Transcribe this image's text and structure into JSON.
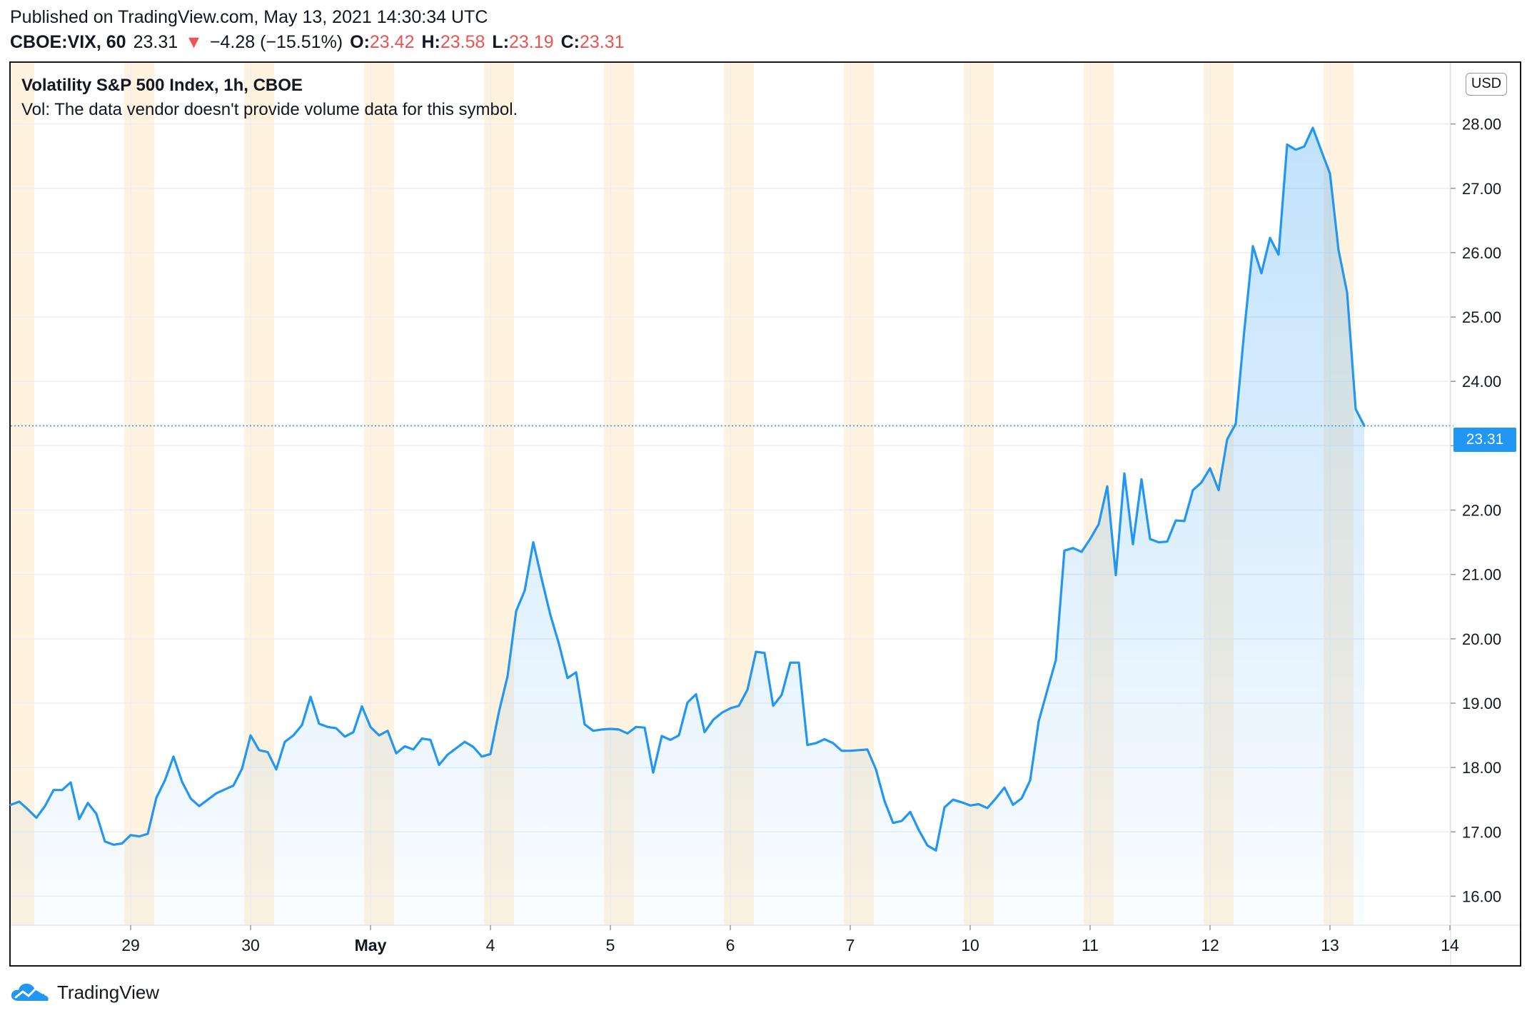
{
  "header": {
    "published": "Published on TradingView.com, May 13, 2021 14:30:34 UTC",
    "symbol": "CBOE:VIX, 60",
    "last": "23.31",
    "change_arrow": "▼",
    "change": "−4.28 (−15.51%)",
    "open_label": "O:",
    "open": "23.42",
    "high_label": "H:",
    "high": "23.58",
    "low_label": "L:",
    "low": "23.19",
    "close_label": "C:",
    "close": "23.31"
  },
  "legend": {
    "title": "Volatility S&P 500 Index, 1h, CBOE",
    "volume_note": "Vol: The data vendor doesn't provide volume data for this symbol."
  },
  "price_scale": {
    "currency": "USD",
    "last_price_label": "23.31"
  },
  "brand": {
    "name": "TradingView",
    "icon": "tradingview-cloud-icon"
  },
  "colors": {
    "line": "#2196f3",
    "session_band": "#fff3e0",
    "price_tag": "#2196f3",
    "change_down": "#ef5350"
  },
  "chart_data": {
    "type": "area",
    "series": [
      {
        "values": [
          17.42,
          17.47,
          17.35,
          17.22,
          17.4,
          17.65,
          17.65,
          17.77,
          17.2,
          17.45,
          17.28,
          16.85,
          16.8,
          16.82,
          16.95,
          16.93,
          16.97,
          17.53,
          17.8,
          18.17,
          17.78,
          17.52,
          17.4,
          17.5,
          17.6,
          17.66,
          17.72,
          17.98,
          18.5,
          18.27,
          18.24,
          17.97,
          18.4,
          18.5,
          18.66,
          19.1,
          18.68,
          18.63,
          18.61,
          18.48,
          18.55,
          18.95,
          18.63,
          18.5,
          18.57,
          18.22,
          18.33,
          18.28,
          18.45,
          18.43,
          18.04,
          18.2,
          18.3,
          18.4,
          18.32,
          18.17,
          18.21,
          18.87,
          19.42,
          20.43,
          20.75,
          21.5,
          20.92,
          20.37,
          19.92,
          19.39,
          19.48,
          18.67,
          18.57,
          18.59,
          18.6,
          18.59,
          18.53,
          18.63,
          18.62,
          17.92,
          18.49,
          18.43,
          18.5,
          19.01,
          19.14,
          18.55,
          18.74,
          18.85,
          18.92,
          18.96,
          19.21,
          19.8,
          19.78,
          18.96,
          19.13,
          19.63,
          19.63,
          18.35,
          18.38,
          18.44,
          18.38,
          18.26,
          18.26,
          18.27,
          18.28,
          17.97,
          17.48,
          17.14,
          17.17,
          17.31,
          17.03,
          16.79,
          16.71,
          17.38,
          17.5,
          17.46,
          17.41,
          17.43,
          17.37,
          17.52,
          17.69,
          17.42,
          17.52,
          17.8,
          18.72,
          19.2,
          19.67,
          21.37,
          21.41,
          21.35,
          21.55,
          21.78,
          22.37,
          20.99,
          22.57,
          21.47,
          22.48,
          21.55,
          21.5,
          21.51,
          21.84,
          21.83,
          22.31,
          22.43,
          22.65,
          22.31,
          23.1,
          23.34,
          24.79,
          26.1,
          25.68,
          26.23,
          25.97,
          27.68,
          27.6,
          27.65,
          27.94,
          27.58,
          27.23,
          26.04,
          25.38,
          23.57,
          23.31
        ]
      }
    ],
    "ylim": [
      15.55,
      28.95
    ],
    "y_ticks": [
      "16.00",
      "17.00",
      "18.00",
      "19.00",
      "20.00",
      "21.00",
      "22.00",
      "23.00",
      "24.00",
      "25.00",
      "26.00",
      "27.00",
      "28.00"
    ],
    "x_ticks": [
      {
        "label": "29",
        "index": 14
      },
      {
        "label": "30",
        "index": 28
      },
      {
        "label": "May",
        "index": 42
      },
      {
        "label": "4",
        "index": 56
      },
      {
        "label": "5",
        "index": 70
      },
      {
        "label": "6",
        "index": 84
      },
      {
        "label": "7",
        "index": 98
      },
      {
        "label": "10",
        "index": 112
      },
      {
        "label": "11",
        "index": 126
      },
      {
        "label": "12",
        "index": 140
      },
      {
        "label": "13",
        "index": 154
      },
      {
        "label": "14",
        "index": 168
      }
    ],
    "session_bands": [
      [
        -1,
        2.75
      ],
      [
        13.25,
        16.75
      ],
      [
        27.25,
        30.75
      ],
      [
        41.25,
        44.75
      ],
      [
        55.25,
        58.75
      ],
      [
        69.25,
        72.75
      ],
      [
        83.25,
        86.75
      ],
      [
        97.25,
        100.75
      ],
      [
        111.25,
        114.75
      ],
      [
        125.25,
        128.75
      ],
      [
        139.25,
        142.75
      ],
      [
        153.25,
        156.75
      ]
    ],
    "grid": true,
    "last_value": 23.31
  }
}
